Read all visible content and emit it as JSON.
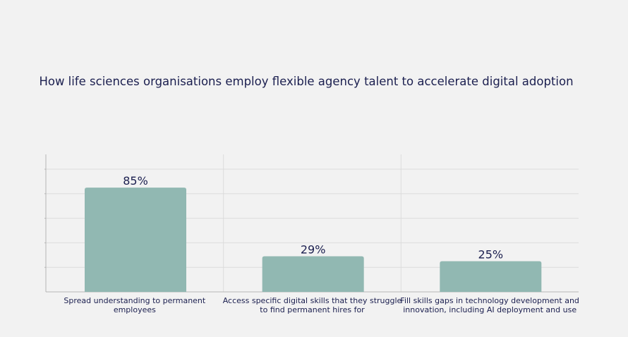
{
  "chart_data": {
    "type": "bar",
    "title": "How life sciences organisations employ flexible agency talent to accelerate digital adoption",
    "categories": [
      [
        "Spread understanding to permanent",
        "employees"
      ],
      [
        "Access specific digital skills that they struggle",
        "to find permanent hires for"
      ],
      [
        "Fill skills gaps in technology development and",
        "innovation, including AI deployment and use"
      ]
    ],
    "values": [
      85,
      29,
      25
    ],
    "value_labels": [
      "85%",
      "29%",
      "25%"
    ],
    "ylim": [
      0,
      100
    ],
    "xlabel": "",
    "ylabel": "",
    "grid": true,
    "colors": {
      "bar": "#91b8b2",
      "title": "#1b1f4f",
      "value_label": "#1b1f4f",
      "category_label": "#1b1f4f",
      "grid": "#dcdcdc",
      "axis": "#b5b5b5",
      "background": "#f2f2f2"
    }
  }
}
